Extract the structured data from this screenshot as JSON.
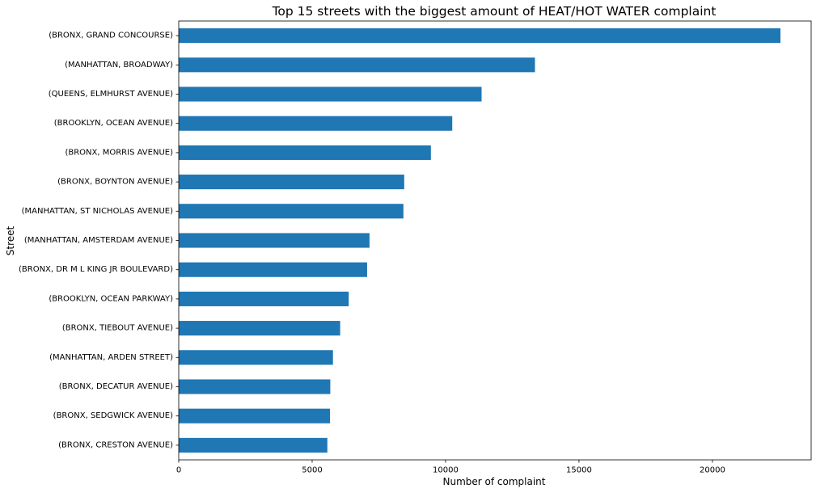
{
  "chart_data": {
    "type": "bar",
    "orientation": "horizontal",
    "title": "Top 15 streets with the biggest amount of HEAT/HOT WATER complaint",
    "xlabel": "Number of complaint",
    "ylabel": "Street",
    "categories": [
      "(BRONX, GRAND CONCOURSE)",
      "(MANHATTAN, BROADWAY)",
      "(QUEENS, ELMHURST AVENUE)",
      "(BROOKLYN, OCEAN AVENUE)",
      "(BRONX, MORRIS AVENUE)",
      "(BRONX, BOYNTON AVENUE)",
      "(MANHATTAN, ST NICHOLAS AVENUE)",
      "(MANHATTAN, AMSTERDAM AVENUE)",
      "(BRONX, DR M L KING JR BOULEVARD)",
      "(BROOKLYN, OCEAN PARKWAY)",
      "(BRONX, TIEBOUT AVENUE)",
      "(MANHATTAN, ARDEN STREET)",
      "(BRONX, DECATUR AVENUE)",
      "(BRONX, SEDGWICK AVENUE)",
      "(BRONX, CRESTON AVENUE)"
    ],
    "values": [
      22550,
      13350,
      11350,
      10250,
      9450,
      8450,
      8420,
      7150,
      7060,
      6370,
      6050,
      5780,
      5680,
      5670,
      5570
    ],
    "xlim": [
      0,
      23700
    ],
    "xticks": [
      0,
      5000,
      10000,
      15000,
      20000
    ],
    "xtick_labels": [
      "0",
      "5000",
      "10000",
      "15000",
      "20000"
    ],
    "bar_color": "#1f77b4",
    "grid": false,
    "legend": "none"
  }
}
